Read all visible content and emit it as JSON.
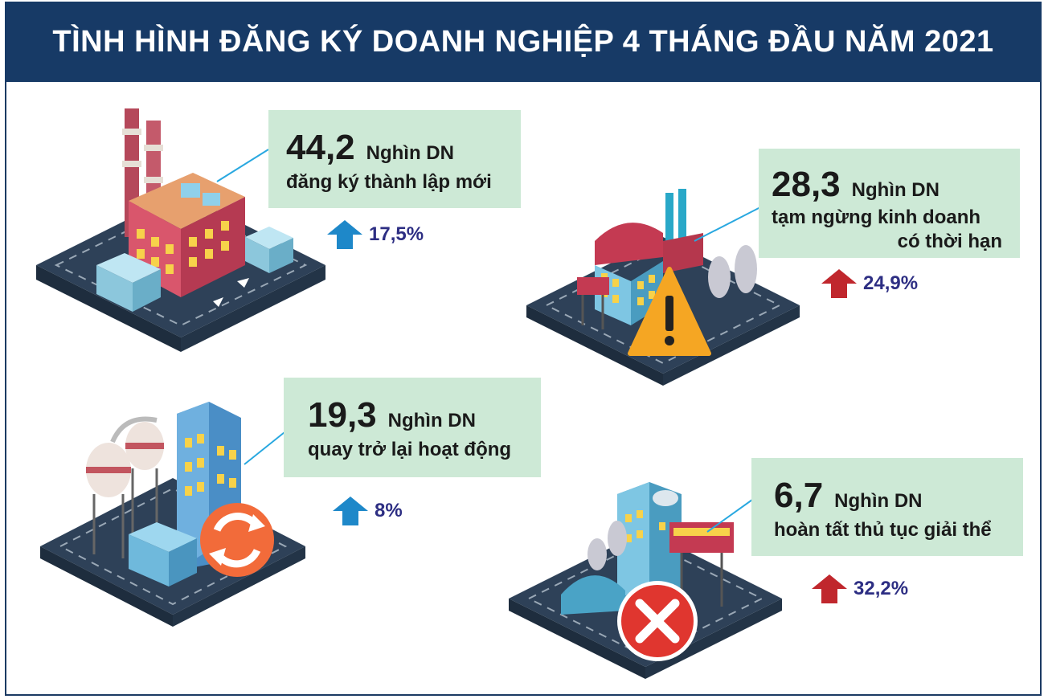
{
  "title": "TÌNH HÌNH ĐĂNG KÝ DOANH NGHIỆP 4 THÁNG ĐẦU NĂM 2021",
  "colors": {
    "header": "#173a66",
    "box": "#cde9d6",
    "arrow_up_blue": "#1e88c9",
    "arrow_up_red": "#c0272d",
    "pct_text": "#2d2e83"
  },
  "stats": [
    {
      "value": "44,2",
      "unit": "Nghìn DN",
      "desc_line1": "đăng ký thành lập mới",
      "desc_line2": "",
      "change": "17,5%",
      "arrow": "up-blue",
      "illustration": "factory-icon"
    },
    {
      "value": "28,3",
      "unit": "Nghìn DN",
      "desc_line1": "tạm ngừng kinh doanh",
      "desc_line2": "có thời hạn",
      "change": "24,9%",
      "arrow": "up-red",
      "illustration": "warning-factory-icon"
    },
    {
      "value": "19,3",
      "unit": "Nghìn DN",
      "desc_line1": "quay trở lại hoạt động",
      "desc_line2": "",
      "change": "8%",
      "arrow": "up-blue",
      "illustration": "refresh-factory-icon"
    },
    {
      "value": "6,7",
      "unit": "Nghìn DN",
      "desc_line1": "hoàn tất thủ tục giải thể",
      "desc_line2": "",
      "change": "32,2%",
      "arrow": "up-red",
      "illustration": "close-factory-icon"
    }
  ]
}
